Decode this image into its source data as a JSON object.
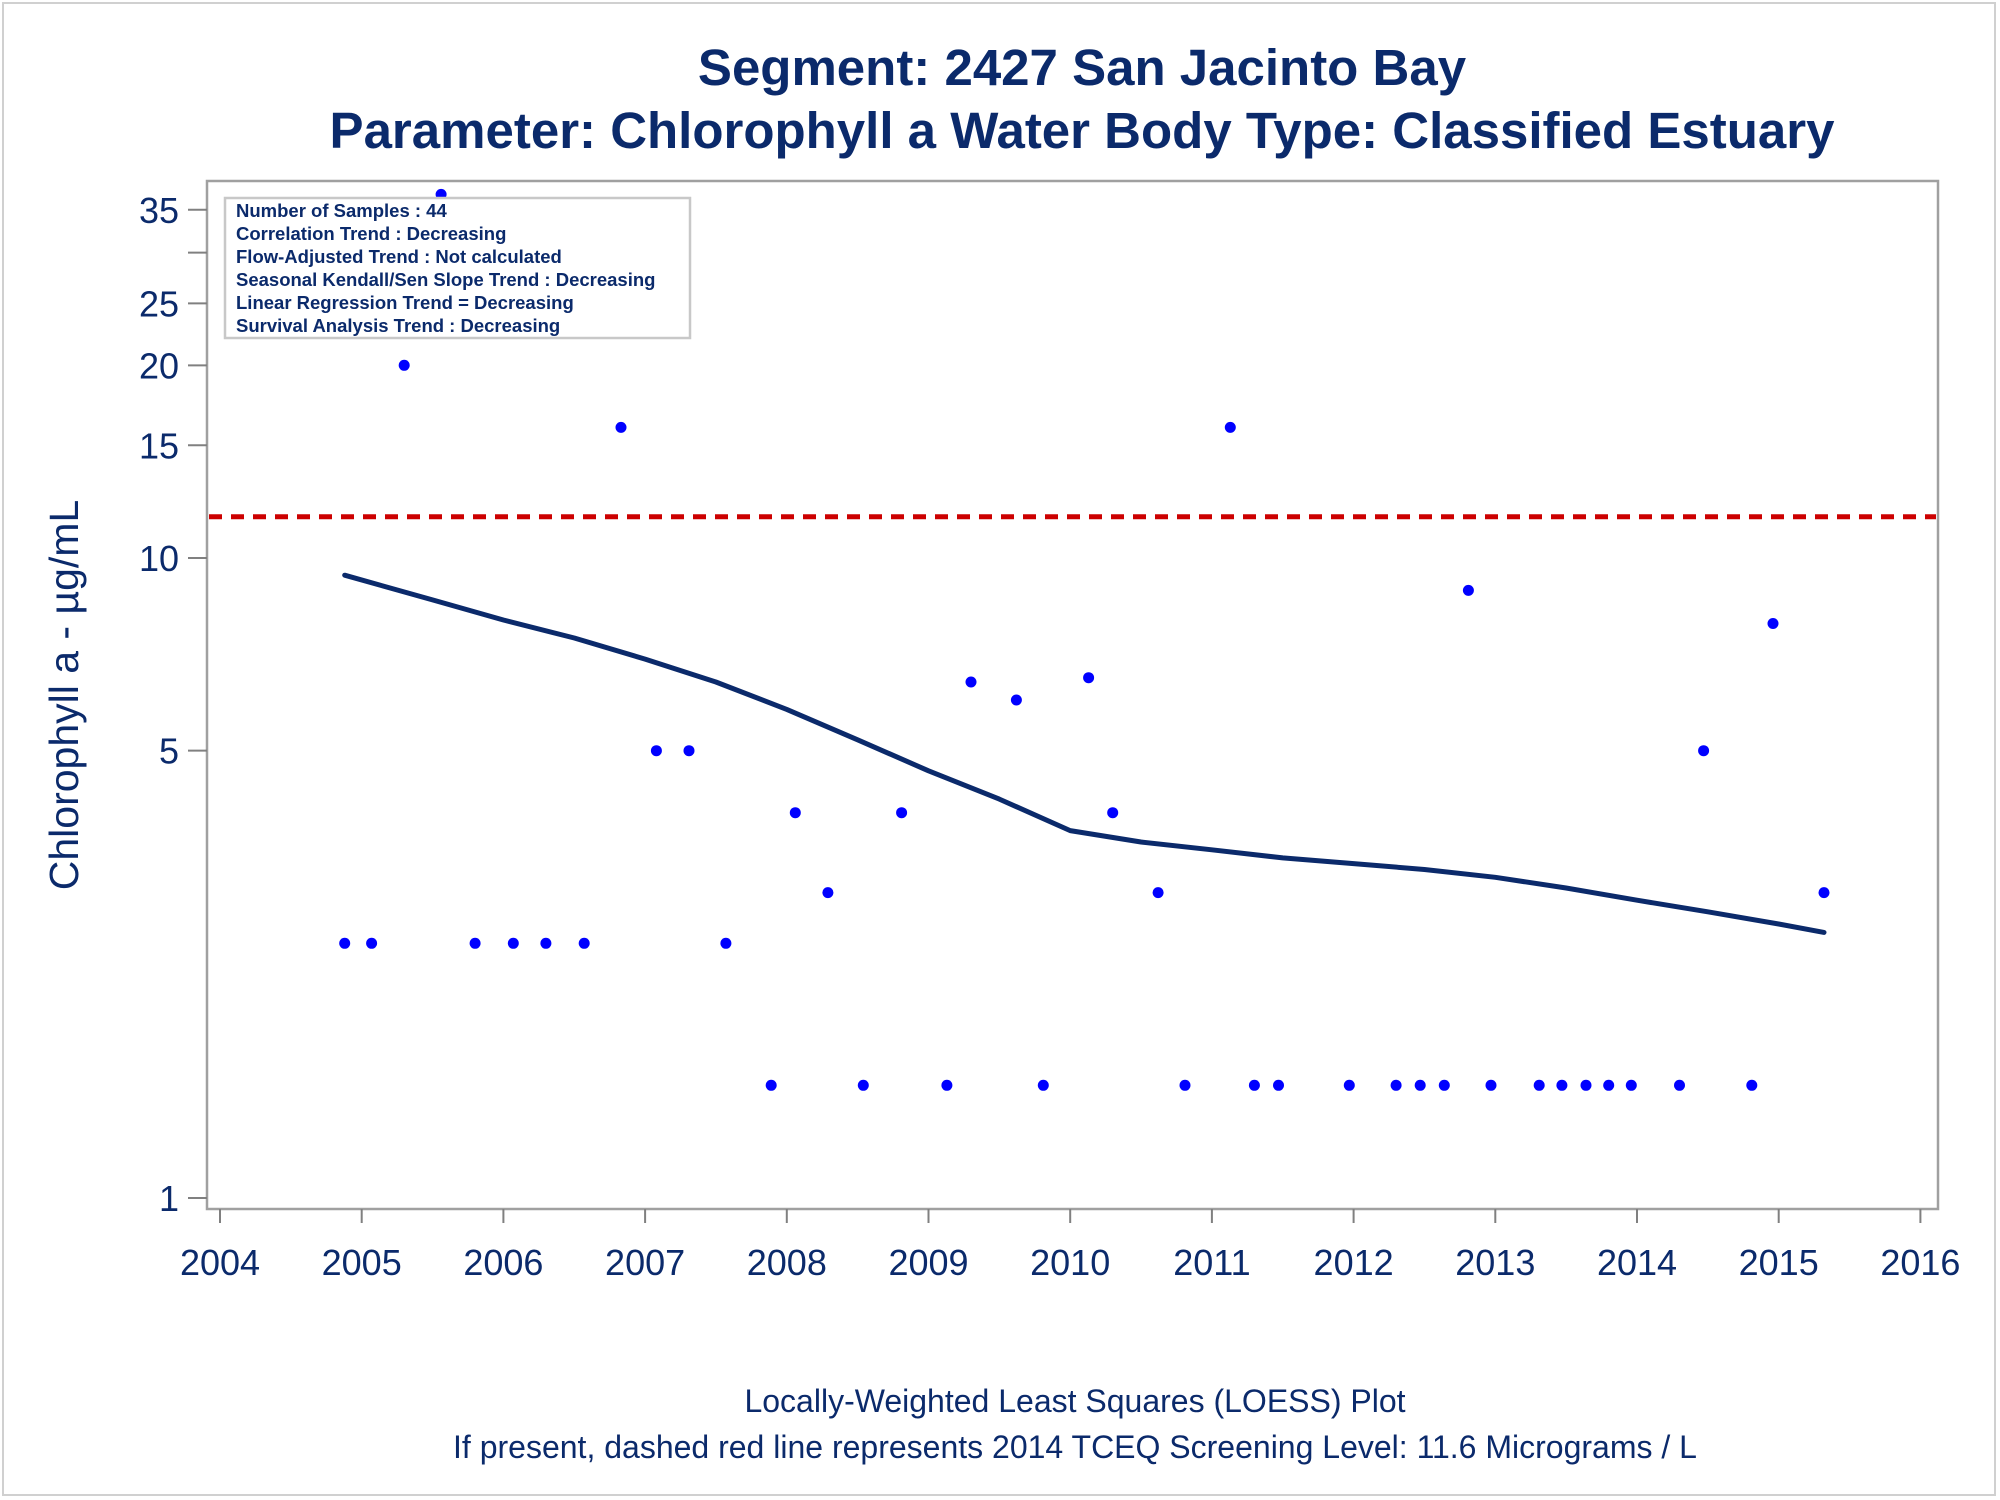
{
  "chart_data": {
    "type": "scatter",
    "title": "Segment: 2427  San Jacinto Bay",
    "subtitle": "Parameter: Chlorophyll a   Water Body Type: Classified Estuary",
    "ylabel": "Chlorophyll a -  µg/mL",
    "xlabel": "",
    "y_scale": "log",
    "ylim": [
      1,
      38
    ],
    "xlim": [
      2004,
      2016
    ],
    "y_ticks": [
      1,
      5,
      10,
      15,
      20,
      25,
      35
    ],
    "y_minor_ticks": [
      30
    ],
    "x_ticks": [
      "2004",
      "2005",
      "2006",
      "2007",
      "2008",
      "2009",
      "2010",
      "2011",
      "2012",
      "2013",
      "2014",
      "2015",
      "2016"
    ],
    "grid": false,
    "legend": "none",
    "stats_box": {
      "position": "top-left",
      "lines": [
        "Number of Samples : 44",
        "Correlation Trend : Decreasing",
        "Flow-Adjusted Trend : Not calculated",
        "Seasonal Kendall/Sen Slope Trend : Decreasing",
        "Linear Regression Trend = Decreasing",
        "Survival Analysis Trend : Decreasing"
      ]
    },
    "series": [
      {
        "type": "scatter",
        "color": "#0000ff",
        "x": [
          2004.88,
          2005.07,
          2005.3,
          2005.56,
          2005.8,
          2006.07,
          2006.3,
          2006.57,
          2006.83,
          2007.08,
          2007.31,
          2007.57,
          2007.89,
          2008.06,
          2008.29,
          2008.54,
          2008.81,
          2009.13,
          2009.3,
          2009.62,
          2009.81,
          2010.13,
          2010.3,
          2010.62,
          2010.81,
          2011.13,
          2011.3,
          2011.47,
          2011.97,
          2012.3,
          2012.47,
          2012.64,
          2012.81,
          2012.97,
          2013.31,
          2013.47,
          2013.64,
          2013.8,
          2013.96,
          2014.3,
          2014.47,
          2014.81,
          2014.96,
          2015.32
        ],
        "y": [
          2.5,
          2.5,
          20,
          37,
          2.5,
          2.5,
          2.5,
          2.5,
          16,
          5,
          5,
          2.5,
          1.5,
          4,
          3,
          1.5,
          4,
          1.5,
          6.4,
          6,
          1.5,
          6.5,
          4,
          3,
          1.5,
          16,
          1.5,
          1.5,
          1.5,
          1.5,
          1.5,
          1.5,
          8.9,
          1.5,
          1.5,
          1.5,
          1.5,
          1.5,
          1.5,
          1.5,
          5,
          1.5,
          7.9,
          3
        ]
      },
      {
        "type": "line",
        "color": "#0b2a6b",
        "x": [
          2004.88,
          2005.5,
          2006.0,
          2006.5,
          2007.0,
          2007.5,
          2008.0,
          2008.5,
          2009.0,
          2009.5,
          2010.0,
          2010.5,
          2011.0,
          2011.5,
          2012.0,
          2012.5,
          2013.0,
          2013.5,
          2014.0,
          2014.5,
          2015.0,
          2015.32
        ],
        "y": [
          9.4,
          8.6,
          8.0,
          7.5,
          6.95,
          6.4,
          5.8,
          5.2,
          4.65,
          4.2,
          3.75,
          3.6,
          3.5,
          3.4,
          3.33,
          3.26,
          3.17,
          3.05,
          2.92,
          2.8,
          2.68,
          2.6
        ]
      },
      {
        "type": "reference-line",
        "color": "#cc0000",
        "style": "dashed",
        "y": 11.6
      }
    ],
    "footnotes": [
      "Locally-Weighted Least Squares (LOESS) Plot",
      "If present, dashed red line represents 2014 TCEQ Screening Level: 11.6 Micrograms / L"
    ]
  }
}
